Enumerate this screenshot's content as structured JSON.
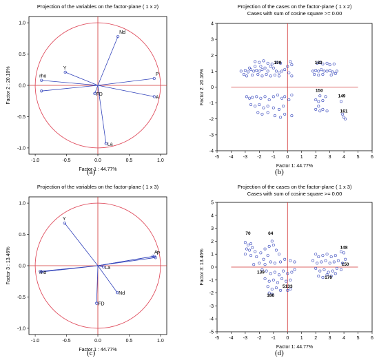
{
  "colors": {
    "circle": "#e05060",
    "vector": "#3344bb",
    "point": "#3344bb",
    "axis": "#d03030",
    "frame": "#000000"
  },
  "panel_labels": [
    "(a)",
    "(b)",
    "(c)",
    "(d)"
  ],
  "chart_data": [
    {
      "type": "scatter",
      "title": "Projection of the variables on the factor-plane ( 1 x 2)",
      "xlabel": "Factor 1 : 44.77%",
      "ylabel": "Factor 2 : 20.10%",
      "xlim": [
        -1.1,
        1.1
      ],
      "ylim": [
        -1.1,
        1.1
      ],
      "xticks": [
        "-1.0",
        "-0.5",
        "0.0",
        "0.5",
        "1.0"
      ],
      "yticks": [
        "1.0",
        "0.5",
        "0.0",
        "-0.5",
        "-1.0"
      ],
      "unit_circle": true,
      "vectors": [
        {
          "name": "Nd",
          "x": 0.32,
          "y": 0.78
        },
        {
          "name": "Y",
          "x": -0.52,
          "y": 0.21
        },
        {
          "name": "rho",
          "x": -0.9,
          "y": 0.08
        },
        {
          "name": "",
          "x": -0.9,
          "y": -0.09
        },
        {
          "name": "P",
          "x": 0.9,
          "y": 0.11
        },
        {
          "name": "A",
          "x": 0.9,
          "y": -0.18
        },
        {
          "name": "FD",
          "x": -0.05,
          "y": -0.13
        },
        {
          "name": "La",
          "x": 0.13,
          "y": -0.93
        }
      ]
    },
    {
      "type": "scatter",
      "title": "Projection of the cases on the factor-plane ( 1 x 2)",
      "subtitle": "Cases with sum of cosine square >= 0.00",
      "xlabel": "Factor 1: 44.77%",
      "ylabel": "Factor 2: 20.10%",
      "xlim": [
        -5,
        6
      ],
      "ylim": [
        -4,
        4
      ],
      "xticks": [
        "-5",
        "-4",
        "-3",
        "-2",
        "-1",
        "0",
        "1",
        "2",
        "3",
        "4",
        "5",
        "6"
      ],
      "yticks": [
        "4",
        "3",
        "2",
        "1",
        "0",
        "-1",
        "-2",
        "-3",
        "-4"
      ],
      "point_labels": [
        {
          "text": "109",
          "x": -0.7,
          "y": 1.45
        },
        {
          "text": "183",
          "x": 2.2,
          "y": 1.45
        },
        {
          "text": "150",
          "x": 2.25,
          "y": -0.3
        },
        {
          "text": "149",
          "x": 3.85,
          "y": -0.65
        },
        {
          "text": "161",
          "x": 4.0,
          "y": -1.6
        }
      ],
      "points": [
        [
          -3.3,
          1.0
        ],
        [
          -3.0,
          1.05
        ],
        [
          -2.8,
          0.95
        ],
        [
          -2.6,
          1.1
        ],
        [
          -2.4,
          1.0
        ],
        [
          -2.2,
          1.05
        ],
        [
          -2.0,
          1.0
        ],
        [
          -1.8,
          1.1
        ],
        [
          -1.6,
          1.2
        ],
        [
          -1.4,
          1.0
        ],
        [
          -1.2,
          1.3
        ],
        [
          -1.0,
          1.2
        ],
        [
          -0.8,
          1.0
        ],
        [
          -0.6,
          0.9
        ],
        [
          -0.4,
          1.0
        ],
        [
          -0.2,
          1.1
        ],
        [
          0.0,
          1.3
        ],
        [
          0.2,
          1.6
        ],
        [
          0.3,
          1.4
        ],
        [
          -2.3,
          1.6
        ],
        [
          -2.0,
          1.55
        ],
        [
          -1.7,
          1.65
        ],
        [
          -1.4,
          1.5
        ],
        [
          -1.1,
          1.45
        ],
        [
          -0.8,
          1.55
        ],
        [
          -0.5,
          1.5
        ],
        [
          -3.1,
          0.8
        ],
        [
          -2.9,
          0.7
        ],
        [
          -2.5,
          0.75
        ],
        [
          -2.1,
          0.8
        ],
        [
          -1.8,
          0.7
        ],
        [
          -1.5,
          0.8
        ],
        [
          -1.2,
          0.7
        ],
        [
          -0.9,
          0.75
        ],
        [
          -0.6,
          0.7
        ],
        [
          0.1,
          0.9
        ],
        [
          0.3,
          0.7
        ],
        [
          -2.7,
          1.2
        ],
        [
          -2.3,
          1.3
        ],
        [
          -1.9,
          1.3
        ],
        [
          1.8,
          1.0
        ],
        [
          2.0,
          1.05
        ],
        [
          2.2,
          1.0
        ],
        [
          2.4,
          1.1
        ],
        [
          2.6,
          1.0
        ],
        [
          2.8,
          1.0
        ],
        [
          3.0,
          1.05
        ],
        [
          3.2,
          0.95
        ],
        [
          3.5,
          1.0
        ],
        [
          2.1,
          1.5
        ],
        [
          2.3,
          1.55
        ],
        [
          2.5,
          1.45
        ],
        [
          2.8,
          1.5
        ],
        [
          3.0,
          1.4
        ],
        [
          3.3,
          1.45
        ],
        [
          1.9,
          0.8
        ],
        [
          2.2,
          0.75
        ],
        [
          2.5,
          0.8
        ],
        [
          3.1,
          0.75
        ],
        [
          3.4,
          0.85
        ],
        [
          -2.9,
          -0.6
        ],
        [
          -2.7,
          -0.7
        ],
        [
          -2.5,
          -0.65
        ],
        [
          -2.2,
          -0.6
        ],
        [
          -1.9,
          -0.7
        ],
        [
          -1.6,
          -0.6
        ],
        [
          -1.3,
          -0.8
        ],
        [
          -1.0,
          -0.6
        ],
        [
          -0.7,
          -0.5
        ],
        [
          -0.4,
          -0.7
        ],
        [
          -0.2,
          -0.6
        ],
        [
          0.1,
          -0.8
        ],
        [
          0.3,
          -0.5
        ],
        [
          -2.6,
          -1.1
        ],
        [
          -2.3,
          -1.2
        ],
        [
          -2.0,
          -1.1
        ],
        [
          -1.7,
          -1.3
        ],
        [
          -1.4,
          -1.2
        ],
        [
          -1.0,
          -1.3
        ],
        [
          -0.6,
          -1.4
        ],
        [
          -0.3,
          -1.2
        ],
        [
          -2.1,
          -1.6
        ],
        [
          -1.8,
          -1.7
        ],
        [
          -1.4,
          -1.6
        ],
        [
          -0.9,
          -1.8
        ],
        [
          -0.5,
          -1.9
        ],
        [
          -0.2,
          -1.7
        ],
        [
          0.3,
          -1.8
        ],
        [
          2.0,
          -0.8
        ],
        [
          2.2,
          -0.9
        ],
        [
          2.5,
          -0.85
        ],
        [
          2.3,
          -0.55
        ],
        [
          2.7,
          -0.6
        ],
        [
          2.0,
          -1.4
        ],
        [
          2.3,
          -1.5
        ],
        [
          2.5,
          -1.4
        ],
        [
          2.8,
          -1.5
        ],
        [
          2.2,
          -1.2
        ],
        [
          3.8,
          -0.9
        ],
        [
          4.0,
          -1.9
        ],
        [
          4.1,
          -2.0
        ],
        [
          3.9,
          -1.7
        ]
      ]
    },
    {
      "type": "scatter",
      "title": "Projection of the variables on the factor-plane ( 1 x 3)",
      "xlabel": "Factor 1 : 44.77%",
      "ylabel": "Factor 3 : 13.46%",
      "xlim": [
        -1.1,
        1.1
      ],
      "ylim": [
        -1.1,
        1.1
      ],
      "xticks": [
        "-1.0",
        "-0.5",
        "0.0",
        "0.5",
        "1.0"
      ],
      "yticks": [
        "1.0",
        "0.5",
        "0.0",
        "-0.5",
        "-1.0"
      ],
      "unit_circle": true,
      "vectors": [
        {
          "name": "Y",
          "x": -0.53,
          "y": 0.68
        },
        {
          "name": "",
          "x": 0.9,
          "y": 0.15
        },
        {
          "name": "P",
          "x": 0.92,
          "y": 0.13
        },
        {
          "name": "A",
          "x": 0.88,
          "y": 0.15
        },
        {
          "name": "rho",
          "x": -0.9,
          "y": -0.1
        },
        {
          "name": "",
          "x": -0.92,
          "y": -0.09
        },
        {
          "name": "La",
          "x": 0.09,
          "y": -0.02
        },
        {
          "name": "Nd",
          "x": 0.31,
          "y": -0.43
        },
        {
          "name": "FD",
          "x": -0.02,
          "y": -0.6
        }
      ]
    },
    {
      "type": "scatter",
      "title": "Projection of the cases on the factor-plane ( 1 x 3)",
      "subtitle": "Cases with sum of cosine square >= 0.00",
      "xlabel": "Factor 1: 44.77%",
      "ylabel": "Factor 3: 13.46%",
      "xlim": [
        -5,
        6
      ],
      "ylim": [
        -5,
        5
      ],
      "xticks": [
        "-5",
        "-4",
        "-3",
        "-2",
        "-1",
        "0",
        "1",
        "2",
        "3",
        "4",
        "5",
        "6"
      ],
      "yticks": [
        "5",
        "4",
        "3",
        "2",
        "1",
        "0",
        "-1",
        "-2",
        "-3",
        "-4",
        "-5"
      ],
      "point_labels": [
        {
          "text": "70",
          "x": -2.8,
          "y": 2.5
        },
        {
          "text": "64",
          "x": -1.2,
          "y": 2.5
        },
        {
          "text": "139",
          "x": -1.9,
          "y": -0.5
        },
        {
          "text": "186",
          "x": -1.2,
          "y": -2.3
        },
        {
          "text": "5133",
          "x": 0.0,
          "y": -1.6
        },
        {
          "text": "148",
          "x": 4.0,
          "y": 1.4
        },
        {
          "text": "150",
          "x": 4.1,
          "y": 0.1
        },
        {
          "text": "170",
          "x": 2.9,
          "y": -0.9
        }
      ],
      "points": [
        [
          -3.0,
          1.9
        ],
        [
          -2.8,
          1.7
        ],
        [
          -2.6,
          1.8
        ],
        [
          -2.9,
          1.4
        ],
        [
          -2.7,
          1.3
        ],
        [
          -2.5,
          1.5
        ],
        [
          -2.3,
          1.2
        ],
        [
          -3.0,
          1.0
        ],
        [
          -2.6,
          0.9
        ],
        [
          -2.2,
          0.8
        ],
        [
          -1.9,
          1.1
        ],
        [
          -1.6,
          1.4
        ],
        [
          -1.3,
          1.6
        ],
        [
          -1.1,
          2.0
        ],
        [
          -1.0,
          1.7
        ],
        [
          -0.8,
          1.3
        ],
        [
          -0.6,
          1.0
        ],
        [
          -1.4,
          0.9
        ],
        [
          -1.7,
          0.6
        ],
        [
          -2.4,
          0.2
        ],
        [
          -2.0,
          0.3
        ],
        [
          -1.6,
          0.2
        ],
        [
          -1.2,
          0.4
        ],
        [
          -0.9,
          0.3
        ],
        [
          -0.5,
          0.4
        ],
        [
          -0.2,
          0.6
        ],
        [
          0.2,
          0.5
        ],
        [
          0.5,
          0.4
        ],
        [
          -1.8,
          -0.2
        ],
        [
          -1.5,
          -0.3
        ],
        [
          -1.2,
          -0.5
        ],
        [
          -0.9,
          -0.4
        ],
        [
          -0.6,
          -0.6
        ],
        [
          -0.3,
          -0.3
        ],
        [
          0.0,
          -0.5
        ],
        [
          0.3,
          -0.4
        ],
        [
          0.5,
          -0.2
        ],
        [
          -1.6,
          -0.9
        ],
        [
          -1.3,
          -1.1
        ],
        [
          -1.0,
          -1.0
        ],
        [
          -0.7,
          -1.2
        ],
        [
          -0.4,
          -0.9
        ],
        [
          -0.1,
          -1.1
        ],
        [
          0.2,
          -1.0
        ],
        [
          -1.4,
          -1.5
        ],
        [
          -1.1,
          -1.7
        ],
        [
          -0.8,
          -1.6
        ],
        [
          -0.5,
          -1.8
        ],
        [
          -1.3,
          -2.0
        ],
        [
          -1.1,
          -2.1
        ],
        [
          0.0,
          -1.8
        ],
        [
          0.2,
          -1.7
        ],
        [
          2.0,
          1.0
        ],
        [
          2.2,
          0.8
        ],
        [
          2.5,
          0.9
        ],
        [
          2.8,
          1.0
        ],
        [
          3.1,
          0.8
        ],
        [
          3.4,
          0.9
        ],
        [
          3.8,
          1.2
        ],
        [
          4.0,
          1.1
        ],
        [
          1.8,
          0.5
        ],
        [
          2.1,
          0.3
        ],
        [
          2.4,
          0.4
        ],
        [
          2.7,
          0.5
        ],
        [
          3.0,
          0.3
        ],
        [
          3.3,
          0.4
        ],
        [
          3.6,
          0.5
        ],
        [
          3.9,
          0.3
        ],
        [
          4.1,
          0.6
        ],
        [
          2.0,
          -0.1
        ],
        [
          2.3,
          -0.3
        ],
        [
          2.6,
          -0.2
        ],
        [
          2.9,
          -0.4
        ],
        [
          3.2,
          -0.3
        ],
        [
          3.5,
          -0.1
        ],
        [
          3.8,
          -0.2
        ],
        [
          2.2,
          -0.7
        ],
        [
          2.5,
          -0.8
        ],
        [
          2.8,
          -0.6
        ],
        [
          3.1,
          -0.7
        ],
        [
          3.4,
          -0.5
        ]
      ]
    }
  ]
}
